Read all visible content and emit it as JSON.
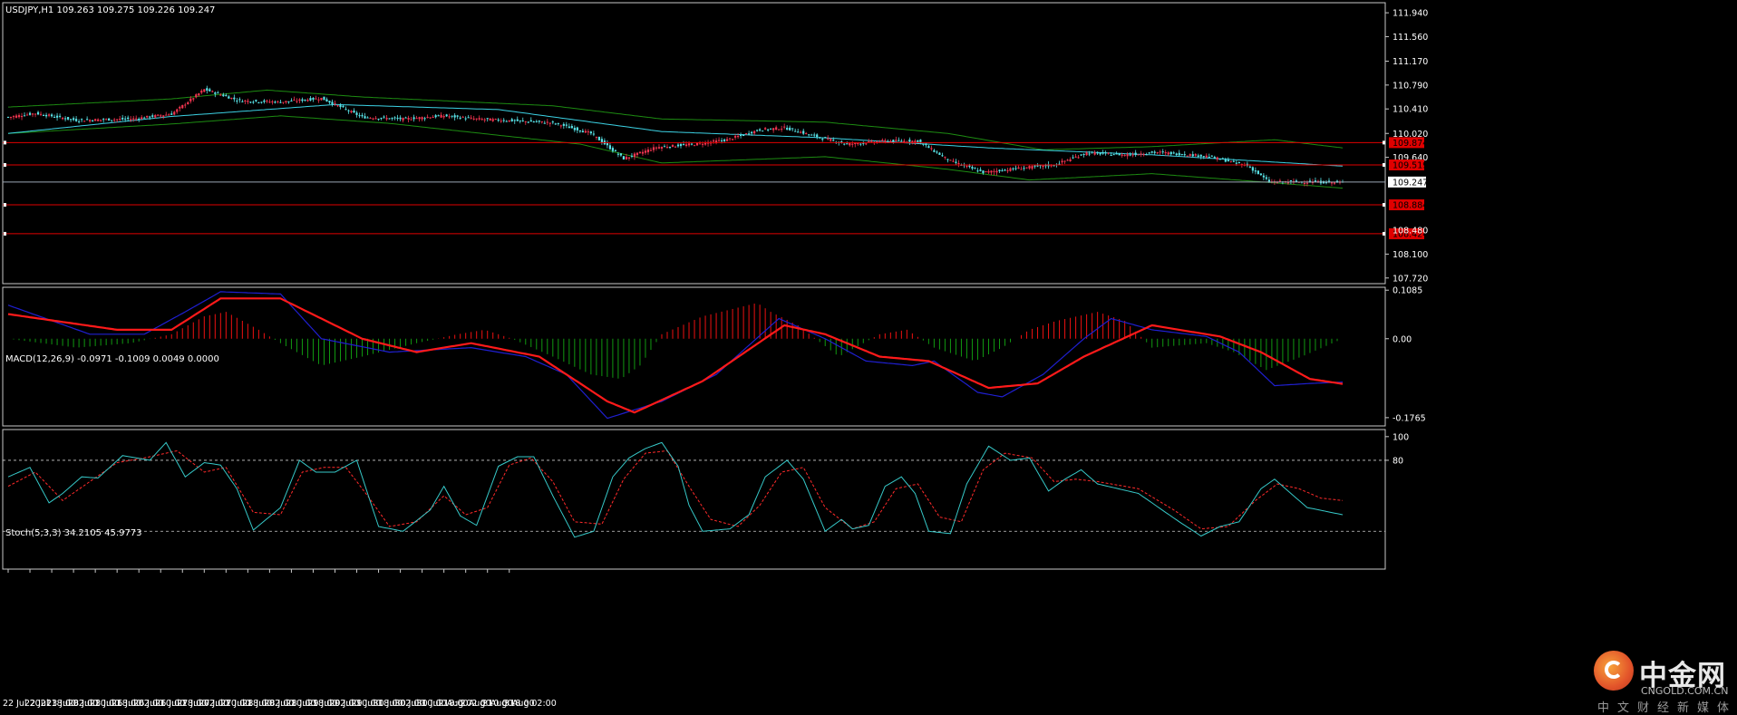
{
  "chart_data": [
    {
      "panel": "price",
      "type": "candlestick",
      "title": "USDJPY,H1  109.263 109.275 109.226 109.247",
      "symbol": "USDJPY,H1",
      "ohlc_readout": "109.263 109.275 109.226 109.247",
      "ylim": [
        107.63,
        112.1
      ],
      "y_ticks": [
        "111.940",
        "111.560",
        "111.170",
        "110.790",
        "110.410",
        "110.020",
        "109.640",
        "108.100",
        "107.720"
      ],
      "y_tick_values": [
        111.94,
        111.56,
        111.17,
        110.79,
        110.41,
        110.02,
        109.64,
        108.1,
        107.72
      ],
      "current_price": {
        "label": "109.247",
        "value": 109.247
      },
      "horizontal_lines": [
        {
          "label": "109.874",
          "value": 109.874
        },
        {
          "label": "109.519",
          "value": 109.519
        },
        {
          "label": "108.884",
          "value": 108.884
        },
        {
          "label": "108.424",
          "value": 108.424
        }
      ],
      "hidden_tick": {
        "label": "108.480",
        "value": 108.48
      },
      "colors": {
        "up": "#f0344f",
        "down": "#58e2e6",
        "ma": "#3cd2e4",
        "bands": "#1d8c12",
        "hline": "#e00000",
        "grid": "#c8c8c8"
      },
      "close_keypoints": [
        [
          0,
          110.28
        ],
        [
          10,
          110.34
        ],
        [
          25,
          110.23
        ],
        [
          45,
          110.25
        ],
        [
          60,
          110.33
        ],
        [
          72,
          110.72
        ],
        [
          85,
          110.54
        ],
        [
          100,
          110.52
        ],
        [
          115,
          110.58
        ],
        [
          130,
          110.28
        ],
        [
          145,
          110.25
        ],
        [
          160,
          110.3
        ],
        [
          172,
          110.25
        ],
        [
          186,
          110.22
        ],
        [
          200,
          110.19
        ],
        [
          214,
          110.02
        ],
        [
          226,
          109.62
        ],
        [
          238,
          109.8
        ],
        [
          252,
          109.85
        ],
        [
          264,
          109.92
        ],
        [
          276,
          110.08
        ],
        [
          285,
          110.11
        ],
        [
          296,
          109.98
        ],
        [
          308,
          109.85
        ],
        [
          322,
          109.9
        ],
        [
          334,
          109.9
        ],
        [
          346,
          109.58
        ],
        [
          358,
          109.4
        ],
        [
          372,
          109.47
        ],
        [
          384,
          109.52
        ],
        [
          396,
          109.71
        ],
        [
          410,
          109.68
        ],
        [
          422,
          109.72
        ],
        [
          440,
          109.66
        ],
        [
          455,
          109.51
        ],
        [
          463,
          109.25
        ],
        [
          475,
          109.25
        ],
        [
          490,
          109.24
        ]
      ],
      "ma_keypoints": [
        [
          0,
          110.02
        ],
        [
          60,
          110.29
        ],
        [
          120,
          110.48
        ],
        [
          180,
          110.4
        ],
        [
          240,
          110.05
        ],
        [
          300,
          109.95
        ],
        [
          360,
          109.79
        ],
        [
          420,
          109.68
        ],
        [
          490,
          109.5
        ]
      ],
      "band_upper_keypoints": [
        [
          0,
          110.44
        ],
        [
          60,
          110.57
        ],
        [
          95,
          110.71
        ],
        [
          130,
          110.6
        ],
        [
          200,
          110.46
        ],
        [
          240,
          110.25
        ],
        [
          300,
          110.2
        ],
        [
          345,
          110.02
        ],
        [
          380,
          109.76
        ],
        [
          420,
          109.81
        ],
        [
          465,
          109.92
        ],
        [
          490,
          109.79
        ]
      ],
      "band_lower_keypoints": [
        [
          0,
          110.02
        ],
        [
          60,
          110.17
        ],
        [
          100,
          110.3
        ],
        [
          140,
          110.18
        ],
        [
          210,
          109.85
        ],
        [
          240,
          109.55
        ],
        [
          300,
          109.65
        ],
        [
          345,
          109.45
        ],
        [
          375,
          109.28
        ],
        [
          420,
          109.38
        ],
        [
          460,
          109.25
        ],
        [
          490,
          109.15
        ]
      ]
    },
    {
      "panel": "macd",
      "type": "histogram+line",
      "title": "MACD(12,26,9) -0.0971 -0.1009 0.0049 0.0000",
      "ylim": [
        -0.195,
        0.115
      ],
      "y_ticks": [
        "0.1085",
        "0.00",
        "-0.1765"
      ],
      "y_tick_values": [
        0.1085,
        0.0,
        -0.1765
      ],
      "colors": {
        "hist_pos": "#ee1111",
        "hist_neg": "#119911",
        "signal": "#ff1a1a",
        "main": "#1f1fd0"
      },
      "hist_keypoints": [
        [
          0,
          0.0
        ],
        [
          25,
          -0.02
        ],
        [
          45,
          -0.01
        ],
        [
          60,
          0.01
        ],
        [
          72,
          0.05
        ],
        [
          80,
          0.06
        ],
        [
          92,
          0.02
        ],
        [
          100,
          -0.01
        ],
        [
          115,
          -0.06
        ],
        [
          130,
          -0.04
        ],
        [
          150,
          -0.01
        ],
        [
          165,
          0.01
        ],
        [
          175,
          0.02
        ],
        [
          185,
          0.0
        ],
        [
          200,
          -0.04
        ],
        [
          214,
          -0.08
        ],
        [
          225,
          -0.09
        ],
        [
          232,
          -0.06
        ],
        [
          240,
          0.01
        ],
        [
          255,
          0.05
        ],
        [
          275,
          0.08
        ],
        [
          280,
          0.06
        ],
        [
          290,
          0.03
        ],
        [
          305,
          -0.04
        ],
        [
          320,
          0.01
        ],
        [
          330,
          0.02
        ],
        [
          340,
          -0.02
        ],
        [
          355,
          -0.05
        ],
        [
          365,
          -0.02
        ],
        [
          375,
          0.02
        ],
        [
          385,
          0.04
        ],
        [
          400,
          0.06
        ],
        [
          410,
          0.04
        ],
        [
          420,
          -0.02
        ],
        [
          440,
          -0.01
        ],
        [
          450,
          -0.03
        ],
        [
          462,
          -0.07
        ],
        [
          475,
          -0.04
        ],
        [
          490,
          0.0
        ]
      ],
      "main_keypoints": [
        [
          0,
          0.075
        ],
        [
          30,
          0.01
        ],
        [
          50,
          0.01
        ],
        [
          65,
          0.06
        ],
        [
          78,
          0.105
        ],
        [
          100,
          0.1
        ],
        [
          115,
          0.0
        ],
        [
          140,
          -0.03
        ],
        [
          170,
          -0.02
        ],
        [
          190,
          -0.04
        ],
        [
          205,
          -0.08
        ],
        [
          220,
          -0.178
        ],
        [
          240,
          -0.14
        ],
        [
          260,
          -0.08
        ],
        [
          283,
          0.045
        ],
        [
          300,
          0.0
        ],
        [
          315,
          -0.05
        ],
        [
          332,
          -0.06
        ],
        [
          340,
          -0.05
        ],
        [
          356,
          -0.12
        ],
        [
          365,
          -0.13
        ],
        [
          380,
          -0.08
        ],
        [
          395,
          0.0
        ],
        [
          405,
          0.045
        ],
        [
          420,
          0.02
        ],
        [
          440,
          0.005
        ],
        [
          452,
          -0.03
        ],
        [
          465,
          -0.105
        ],
        [
          478,
          -0.1
        ],
        [
          490,
          -0.097
        ]
      ],
      "signal_keypoints": [
        [
          0,
          0.055
        ],
        [
          40,
          0.02
        ],
        [
          60,
          0.02
        ],
        [
          78,
          0.09
        ],
        [
          100,
          0.09
        ],
        [
          130,
          0.0
        ],
        [
          150,
          -0.03
        ],
        [
          170,
          -0.01
        ],
        [
          195,
          -0.04
        ],
        [
          220,
          -0.14
        ],
        [
          230,
          -0.165
        ],
        [
          255,
          -0.095
        ],
        [
          285,
          0.03
        ],
        [
          300,
          0.01
        ],
        [
          320,
          -0.04
        ],
        [
          338,
          -0.05
        ],
        [
          360,
          -0.11
        ],
        [
          378,
          -0.1
        ],
        [
          395,
          -0.04
        ],
        [
          420,
          0.03
        ],
        [
          445,
          0.005
        ],
        [
          460,
          -0.03
        ],
        [
          478,
          -0.09
        ],
        [
          490,
          -0.101
        ]
      ]
    },
    {
      "panel": "stochastic",
      "type": "line",
      "title": "Stoch(5,3,3) 34.2105 45.9773",
      "ylim": [
        -12,
        106
      ],
      "y_ticks": [
        "100",
        "80"
      ],
      "y_tick_values": [
        100,
        80
      ],
      "levels": [
        80,
        20
      ],
      "colors": {
        "main": "#36c8c8",
        "signal": "#ff2a2a",
        "level": "#ffffff"
      },
      "main_keypoints": [
        [
          0,
          66
        ],
        [
          8,
          74
        ],
        [
          15,
          44
        ],
        [
          20,
          52
        ],
        [
          27,
          66
        ],
        [
          33,
          65
        ],
        [
          42,
          84
        ],
        [
          52,
          80
        ],
        [
          58,
          95
        ],
        [
          65,
          66
        ],
        [
          72,
          78
        ],
        [
          78,
          76
        ],
        [
          84,
          56
        ],
        [
          90,
          21
        ],
        [
          100,
          40
        ],
        [
          107,
          80
        ],
        [
          113,
          70
        ],
        [
          120,
          70
        ],
        [
          128,
          80
        ],
        [
          136,
          24
        ],
        [
          145,
          20
        ],
        [
          155,
          38
        ],
        [
          160,
          58
        ],
        [
          166,
          33
        ],
        [
          172,
          25
        ],
        [
          180,
          75
        ],
        [
          187,
          83
        ],
        [
          193,
          83
        ],
        [
          200,
          50
        ],
        [
          208,
          15
        ],
        [
          215,
          20
        ],
        [
          222,
          66
        ],
        [
          228,
          82
        ],
        [
          234,
          90
        ],
        [
          240,
          95
        ],
        [
          246,
          75
        ],
        [
          250,
          42
        ],
        [
          255,
          20
        ],
        [
          265,
          22
        ],
        [
          272,
          34
        ],
        [
          278,
          66
        ],
        [
          286,
          80
        ],
        [
          292,
          64
        ],
        [
          300,
          20
        ],
        [
          306,
          30
        ],
        [
          310,
          22
        ],
        [
          316,
          25
        ],
        [
          322,
          58
        ],
        [
          328,
          66
        ],
        [
          333,
          52
        ],
        [
          338,
          20
        ],
        [
          346,
          18
        ],
        [
          352,
          60
        ],
        [
          360,
          92
        ],
        [
          368,
          80
        ],
        [
          375,
          82
        ],
        [
          382,
          54
        ],
        [
          388,
          64
        ],
        [
          394,
          72
        ],
        [
          400,
          60
        ],
        [
          415,
          52
        ],
        [
          430,
          28
        ],
        [
          438,
          16
        ],
        [
          445,
          24
        ],
        [
          452,
          28
        ],
        [
          460,
          56
        ],
        [
          465,
          64
        ],
        [
          472,
          50
        ],
        [
          477,
          40
        ],
        [
          490,
          34
        ]
      ],
      "signal_keypoints": [
        [
          0,
          58
        ],
        [
          10,
          70
        ],
        [
          20,
          46
        ],
        [
          30,
          62
        ],
        [
          40,
          78
        ],
        [
          50,
          82
        ],
        [
          62,
          88
        ],
        [
          72,
          70
        ],
        [
          80,
          74
        ],
        [
          90,
          36
        ],
        [
          100,
          34
        ],
        [
          108,
          70
        ],
        [
          116,
          74
        ],
        [
          124,
          74
        ],
        [
          132,
          50
        ],
        [
          140,
          24
        ],
        [
          150,
          28
        ],
        [
          160,
          50
        ],
        [
          168,
          34
        ],
        [
          176,
          40
        ],
        [
          184,
          76
        ],
        [
          192,
          82
        ],
        [
          200,
          62
        ],
        [
          208,
          28
        ],
        [
          218,
          26
        ],
        [
          226,
          64
        ],
        [
          234,
          86
        ],
        [
          242,
          88
        ],
        [
          250,
          58
        ],
        [
          258,
          30
        ],
        [
          268,
          24
        ],
        [
          276,
          42
        ],
        [
          284,
          70
        ],
        [
          292,
          74
        ],
        [
          300,
          40
        ],
        [
          310,
          22
        ],
        [
          318,
          28
        ],
        [
          326,
          56
        ],
        [
          334,
          60
        ],
        [
          342,
          32
        ],
        [
          350,
          28
        ],
        [
          358,
          72
        ],
        [
          366,
          86
        ],
        [
          376,
          82
        ],
        [
          384,
          62
        ],
        [
          392,
          64
        ],
        [
          400,
          62
        ],
        [
          415,
          56
        ],
        [
          428,
          38
        ],
        [
          438,
          22
        ],
        [
          448,
          24
        ],
        [
          458,
          46
        ],
        [
          466,
          60
        ],
        [
          474,
          56
        ],
        [
          482,
          48
        ],
        [
          490,
          46
        ]
      ]
    }
  ],
  "x_axis": {
    "labels": [
      "22 Jul 2021",
      "22 Jul 18:00",
      "23 Jul 02:00",
      "23 Jul 10:00",
      "23 Jul 18:00",
      "26 Jul 02:00",
      "26 Jul 10:00",
      "26 Jul 18:00",
      "27 Jul 02:00",
      "27 Jul 10:00",
      "27 Jul 18:00",
      "28 Jul 02:00",
      "28 Jul 10:00",
      "28 Jul 18:00",
      "29 Jul 02:00",
      "29 Jul 10:00",
      "29 Jul 18:00",
      "30 Jul 02:00",
      "30 Jul 10:00",
      "30 Jul 18:00",
      "2 Aug 02:00",
      "2 Aug 10:00",
      "2 Aug 18:00",
      "3 Aug 02:00"
    ],
    "bars_per_label": 8,
    "total_bars": 491
  },
  "watermark": {
    "name": "中金网",
    "url": "CNGOLD.COM.CN",
    "subtitle": "中文财经新媒体"
  }
}
